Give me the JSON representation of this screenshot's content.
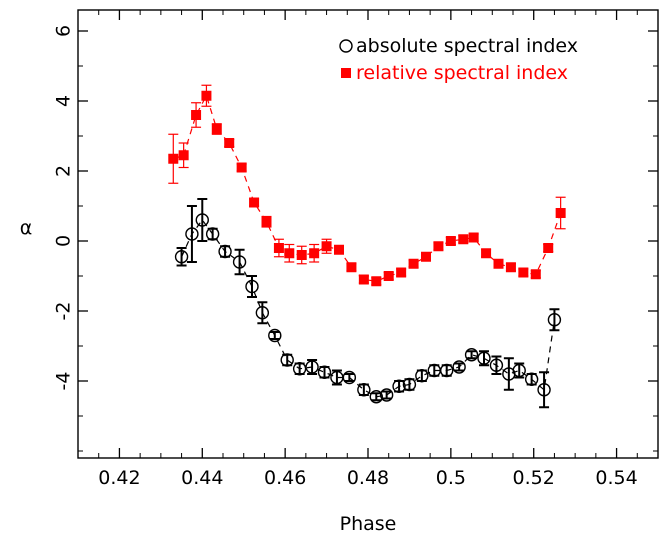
{
  "chart_data": {
    "type": "scatter",
    "xlabel": "Phase",
    "ylabel": "α",
    "xlim": [
      0.41,
      0.55
    ],
    "ylim": [
      -6.2,
      6.6
    ],
    "xticks": [
      0.42,
      0.44,
      0.46,
      0.48,
      0.5,
      0.52,
      0.54
    ],
    "xtick_labels": [
      "0.42",
      "0.44",
      "0.46",
      "0.48",
      "0.5",
      "0.52",
      "0.54"
    ],
    "yticks": [
      -4,
      -2,
      0,
      2,
      4,
      6
    ],
    "ytick_labels": [
      "-4",
      "-2",
      "0",
      "2",
      "4",
      "6"
    ],
    "grid": false,
    "legend_position": "top-right",
    "series": [
      {
        "name": "absolute spectral index",
        "color": "#000000",
        "marker": "open-circle",
        "line": "dashed",
        "points": [
          {
            "x": 0.435,
            "y": -0.45,
            "err": 0.25
          },
          {
            "x": 0.4375,
            "y": 0.2,
            "err": 0.8
          },
          {
            "x": 0.44,
            "y": 0.6,
            "err": 0.6
          },
          {
            "x": 0.4425,
            "y": 0.2,
            "err": 0.15
          },
          {
            "x": 0.4455,
            "y": -0.3,
            "err": 0.15
          },
          {
            "x": 0.449,
            "y": -0.6,
            "err": 0.35
          },
          {
            "x": 0.452,
            "y": -1.3,
            "err": 0.3
          },
          {
            "x": 0.4545,
            "y": -2.05,
            "err": 0.3
          },
          {
            "x": 0.4575,
            "y": -2.7,
            "err": 0.1
          },
          {
            "x": 0.4605,
            "y": -3.4,
            "err": 0.15
          },
          {
            "x": 0.4635,
            "y": -3.65,
            "err": 0.15
          },
          {
            "x": 0.4665,
            "y": -3.6,
            "err": 0.2
          },
          {
            "x": 0.4695,
            "y": -3.75,
            "err": 0.15
          },
          {
            "x": 0.4725,
            "y": -3.9,
            "err": 0.2
          },
          {
            "x": 0.4755,
            "y": -3.9,
            "err": 0.1
          },
          {
            "x": 0.479,
            "y": -4.25,
            "err": 0.15
          },
          {
            "x": 0.482,
            "y": -4.45,
            "err": 0.1
          },
          {
            "x": 0.4845,
            "y": -4.4,
            "err": 0.1
          },
          {
            "x": 0.4875,
            "y": -4.15,
            "err": 0.15
          },
          {
            "x": 0.49,
            "y": -4.1,
            "err": 0.15
          },
          {
            "x": 0.493,
            "y": -3.85,
            "err": 0.15
          },
          {
            "x": 0.496,
            "y": -3.7,
            "err": 0.15
          },
          {
            "x": 0.499,
            "y": -3.7,
            "err": 0.15
          },
          {
            "x": 0.502,
            "y": -3.6,
            "err": 0.1
          },
          {
            "x": 0.505,
            "y": -3.25,
            "err": 0.1
          },
          {
            "x": 0.508,
            "y": -3.35,
            "err": 0.2
          },
          {
            "x": 0.511,
            "y": -3.55,
            "err": 0.25
          },
          {
            "x": 0.514,
            "y": -3.8,
            "err": 0.45
          },
          {
            "x": 0.5165,
            "y": -3.7,
            "err": 0.2
          },
          {
            "x": 0.5195,
            "y": -3.95,
            "err": 0.15
          },
          {
            "x": 0.5225,
            "y": -4.25,
            "err": 0.5
          },
          {
            "x": 0.525,
            "y": -2.25,
            "err": 0.3
          }
        ]
      },
      {
        "name": "relative spectral index",
        "color": "#ff0000",
        "marker": "filled-square",
        "line": "dashed",
        "points": [
          {
            "x": 0.433,
            "y": 2.35,
            "err": 0.7
          },
          {
            "x": 0.4355,
            "y": 2.45,
            "err": 0.35
          },
          {
            "x": 0.4385,
            "y": 3.6,
            "err": 0.35
          },
          {
            "x": 0.441,
            "y": 4.15,
            "err": 0.3
          },
          {
            "x": 0.4435,
            "y": 3.2,
            "err": 0.15
          },
          {
            "x": 0.4465,
            "y": 2.8,
            "err": 0.1
          },
          {
            "x": 0.4495,
            "y": 2.1,
            "err": 0.1
          },
          {
            "x": 0.4525,
            "y": 1.1,
            "err": 0.1
          },
          {
            "x": 0.4555,
            "y": 0.55,
            "err": 0.15
          },
          {
            "x": 0.4585,
            "y": -0.2,
            "err": 0.25
          },
          {
            "x": 0.461,
            "y": -0.35,
            "err": 0.25
          },
          {
            "x": 0.464,
            "y": -0.4,
            "err": 0.25
          },
          {
            "x": 0.467,
            "y": -0.35,
            "err": 0.25
          },
          {
            "x": 0.47,
            "y": -0.15,
            "err": 0.2
          },
          {
            "x": 0.473,
            "y": -0.25,
            "err": 0.1
          },
          {
            "x": 0.476,
            "y": -0.75,
            "err": 0.1
          },
          {
            "x": 0.479,
            "y": -1.1,
            "err": 0.1
          },
          {
            "x": 0.482,
            "y": -1.15,
            "err": 0.1
          },
          {
            "x": 0.485,
            "y": -1.0,
            "err": 0.1
          },
          {
            "x": 0.488,
            "y": -0.9,
            "err": 0.1
          },
          {
            "x": 0.491,
            "y": -0.65,
            "err": 0.1
          },
          {
            "x": 0.494,
            "y": -0.45,
            "err": 0.1
          },
          {
            "x": 0.497,
            "y": -0.15,
            "err": 0.1
          },
          {
            "x": 0.5,
            "y": 0.0,
            "err": 0.1
          },
          {
            "x": 0.503,
            "y": 0.05,
            "err": 0.1
          },
          {
            "x": 0.5055,
            "y": 0.1,
            "err": 0.1
          },
          {
            "x": 0.5085,
            "y": -0.35,
            "err": 0.1
          },
          {
            "x": 0.5115,
            "y": -0.65,
            "err": 0.1
          },
          {
            "x": 0.5145,
            "y": -0.75,
            "err": 0.1
          },
          {
            "x": 0.5175,
            "y": -0.9,
            "err": 0.1
          },
          {
            "x": 0.5205,
            "y": -0.95,
            "err": 0.1
          },
          {
            "x": 0.5235,
            "y": -0.2,
            "err": 0.1
          },
          {
            "x": 0.5265,
            "y": 0.8,
            "err": 0.45
          }
        ]
      }
    ]
  }
}
